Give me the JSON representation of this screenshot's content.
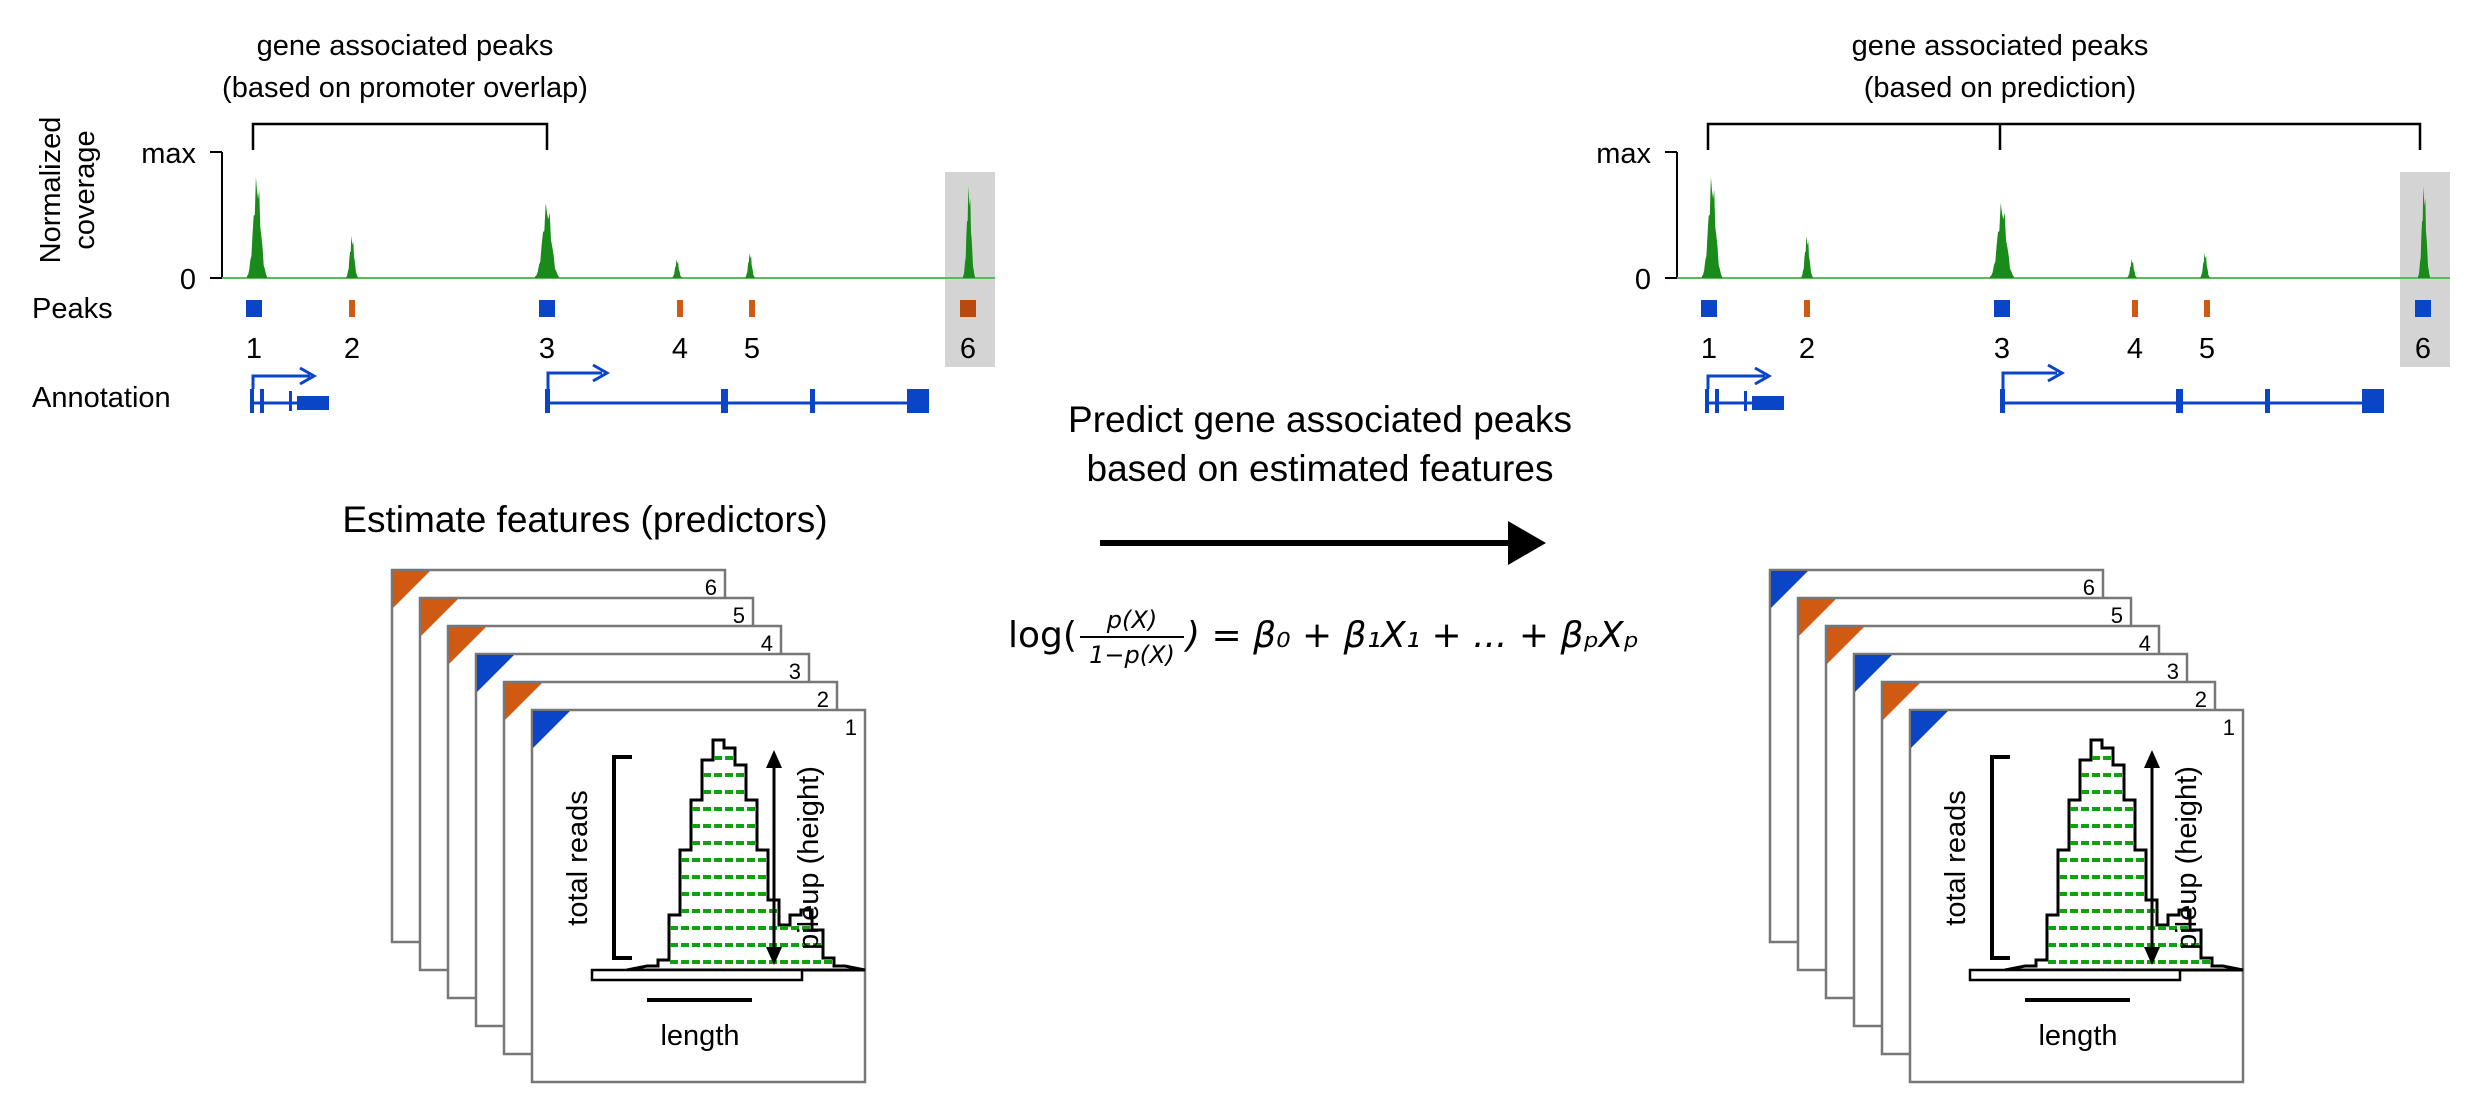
{
  "colors": {
    "coverage": "#1a8a1a",
    "coverage_line": "#5cb85c",
    "blue": "#0a45c8",
    "orange": "#d05a12",
    "highlight": "#d4d4d4",
    "pileup_fill": "#ffffff",
    "pileup_dash": "#10a010"
  },
  "left_panel": {
    "bracket_title_line1": "gene associated peaks",
    "bracket_title_line2": "(based on promoter overlap)",
    "y_axis_label_line1": "Normalized",
    "y_axis_label_line2": "coverage",
    "y_tick_max": "max",
    "y_tick_zero": "0",
    "peaks_label": "Peaks",
    "annotation_label": "Annotation",
    "peak_numbers": [
      "1",
      "2",
      "3",
      "4",
      "5",
      "6"
    ],
    "peak_types": [
      "promoter",
      "other",
      "promoter",
      "other",
      "other",
      "other"
    ],
    "highlighted_peak": "6"
  },
  "right_panel": {
    "bracket_title_line1": "gene associated peaks",
    "bracket_title_line2": "(based on prediction)",
    "y_tick_max": "max",
    "y_tick_zero": "0",
    "peak_numbers": [
      "1",
      "2",
      "3",
      "4",
      "5",
      "6"
    ],
    "peak_types": [
      "promoter",
      "other",
      "promoter",
      "other",
      "other",
      "promoter"
    ],
    "highlighted_peak": "6"
  },
  "middle": {
    "predict_line1": "Predict gene associated peaks",
    "predict_line2": "based on estimated features",
    "formula": {
      "log": "log(",
      "numerator": "p(X)",
      "denominator": "1−p(X)",
      "rhs": ") = β₀ + β₁X₁ + ... + βₚXₚ"
    }
  },
  "features_title": "Estimate features (predictors)",
  "left_stack": {
    "card_numbers": [
      "6",
      "5",
      "4",
      "3",
      "2",
      "1"
    ],
    "card_corner_types": [
      "orange",
      "orange",
      "orange",
      "blue",
      "orange",
      "blue"
    ],
    "total_reads_label": "total reads",
    "pileup_label": "pileup (height)",
    "length_label": "length"
  },
  "right_stack": {
    "card_numbers": [
      "6",
      "5",
      "4",
      "3",
      "2",
      "1"
    ],
    "card_corner_types": [
      "blue",
      "orange",
      "orange",
      "blue",
      "orange",
      "blue"
    ],
    "total_reads_label": "total reads",
    "pileup_label": "pileup (height)",
    "length_label": "length"
  }
}
